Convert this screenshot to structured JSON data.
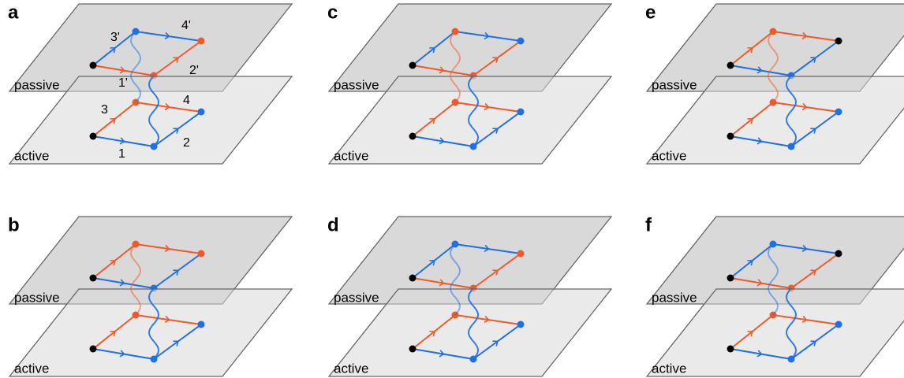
{
  "panels": [
    {
      "letter": "a",
      "top_plane": "passive",
      "bottom_plane": "active",
      "edge_labels": {
        "1": "1",
        "2": "2",
        "3": "3",
        "4": "4",
        "1p": "1'",
        "2p": "2'",
        "3p": "3'",
        "4p": "4'"
      }
    },
    {
      "letter": "b",
      "top_plane": "passive",
      "bottom_plane": "active"
    },
    {
      "letter": "c",
      "top_plane": "passive",
      "bottom_plane": "active"
    },
    {
      "letter": "d",
      "top_plane": "passive",
      "bottom_plane": "active"
    },
    {
      "letter": "e",
      "top_plane": "passive",
      "bottom_plane": "active"
    },
    {
      "letter": "f",
      "top_plane": "passive",
      "bottom_plane": "active"
    }
  ]
}
